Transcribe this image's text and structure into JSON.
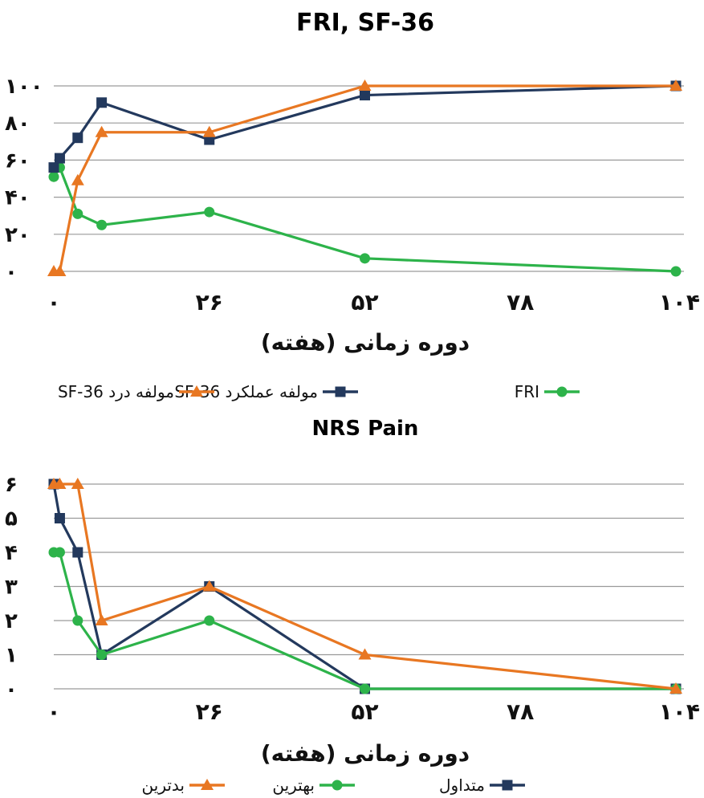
{
  "chart_data": [
    {
      "type": "line",
      "title": "FRI, SF-36",
      "xlabel": "دوره زمانی (هفته)",
      "ylabel": "",
      "xlim": [
        0,
        104
      ],
      "ylim": [
        0,
        100
      ],
      "xticks": [
        0,
        26,
        52,
        78,
        104
      ],
      "xtick_labels": [
        "۰",
        "۲۶",
        "۵۲",
        "۷۸",
        "۱۰۴"
      ],
      "yticks": [
        0,
        20,
        40,
        60,
        80,
        100
      ],
      "ytick_labels": [
        "۰",
        "۲۰",
        "۴۰",
        "۶۰",
        "۸۰",
        "۱۰۰"
      ],
      "grid": true,
      "legend_position": "bottom",
      "series": [
        {
          "name": "FRI",
          "color": "#2db34a",
          "marker": "circle",
          "x": [
            0,
            1,
            4,
            8,
            26,
            52,
            104
          ],
          "y": [
            51,
            56,
            31,
            25,
            32,
            7,
            0
          ]
        },
        {
          "name": "SF-36 مولفه عملکرد",
          "color": "#23395d",
          "marker": "square",
          "x": [
            0,
            1,
            4,
            8,
            26,
            52,
            104
          ],
          "y": [
            56,
            61,
            72,
            91,
            71,
            95,
            100
          ]
        },
        {
          "name": "SF-36 مولفه درد",
          "color": "#e87722",
          "marker": "triangle",
          "x": [
            0,
            1,
            4,
            8,
            26,
            52,
            104
          ],
          "y": [
            0,
            0,
            49,
            75,
            75,
            100,
            100
          ]
        }
      ]
    },
    {
      "type": "line",
      "title": "NRS Pain",
      "xlabel": "دوره زمانی (هفته)",
      "ylabel": "",
      "xlim": [
        0,
        104
      ],
      "ylim": [
        0,
        6
      ],
      "xticks": [
        0,
        26,
        52,
        78,
        104
      ],
      "xtick_labels": [
        "۰",
        "۲۶",
        "۵۲",
        "۷۸",
        "۱۰۴"
      ],
      "yticks": [
        0,
        1,
        2,
        3,
        4,
        5,
        6
      ],
      "ytick_labels": [
        "۰",
        "۱",
        "۲",
        "۳",
        "۴",
        "۵",
        "۶"
      ],
      "grid": true,
      "legend_position": "bottom",
      "series": [
        {
          "name": "متداول",
          "color": "#23395d",
          "marker": "square",
          "x": [
            0,
            1,
            4,
            8,
            26,
            52,
            104
          ],
          "y": [
            6,
            5,
            4,
            1,
            3,
            0,
            0
          ]
        },
        {
          "name": "بهترین",
          "color": "#2db34a",
          "marker": "circle",
          "x": [
            0,
            1,
            4,
            8,
            26,
            52,
            104
          ],
          "y": [
            4,
            4,
            2,
            1,
            2,
            0,
            0
          ]
        },
        {
          "name": "بدترین",
          "color": "#e87722",
          "marker": "triangle",
          "x": [
            0,
            1,
            4,
            8,
            26,
            52,
            104
          ],
          "y": [
            6,
            6,
            6,
            2,
            3,
            1,
            0
          ]
        }
      ]
    }
  ]
}
